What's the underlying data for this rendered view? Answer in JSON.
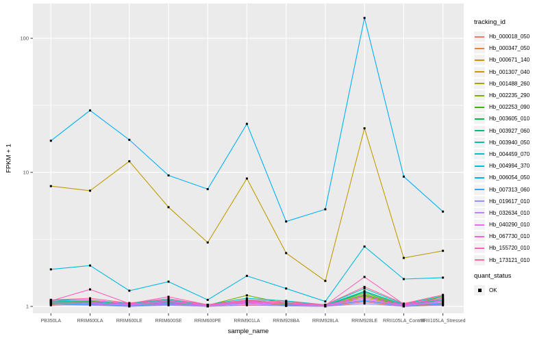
{
  "chart_data": {
    "type": "line",
    "title": "",
    "xlabel": "sample_name",
    "ylabel": "FPKM + 1",
    "yscale": "log10",
    "ylim": [
      0.9,
      180
    ],
    "y_major_ticks": [
      1,
      10,
      100
    ],
    "y_minor_ticks": [
      3.162,
      31.623
    ],
    "grid": true,
    "legend_position": "right",
    "marker": "black-square",
    "legends": {
      "tracking_title": "tracking_id",
      "quant_title": "quant_status",
      "quant_entries": [
        "OK"
      ]
    },
    "colors": {
      "panel_bg": "#EBEBEB",
      "gridline": "#FFFFFF",
      "tick_label": "#4D4D4D",
      "axis_title": "#000000",
      "legend_key_bg": "#F2F2F2",
      "point": "#000000"
    },
    "categories": [
      "PB350LA",
      "RRIM600LA",
      "RRIM600LE",
      "RRIM600SE",
      "RRIM600PE",
      "RRIM901LA",
      "RRIM928BA",
      "RRIM928LA",
      "RRIM928LE",
      "RRII105LA_Control",
      "RRII105LA_Stressed"
    ],
    "series": [
      {
        "name": "Hb_000018_050",
        "color": "#F8766D",
        "values": [
          1.02,
          1.04,
          1.0,
          1.03,
          1.0,
          1.02,
          1.01,
          1.0,
          1.08,
          1.0,
          1.03
        ]
      },
      {
        "name": "Hb_000347_050",
        "color": "#EA8331",
        "values": [
          1.04,
          1.07,
          1.01,
          1.05,
          1.01,
          1.05,
          1.02,
          1.0,
          1.12,
          1.01,
          1.06
        ]
      },
      {
        "name": "Hb_000671_140",
        "color": "#D89000",
        "values": [
          1.05,
          1.03,
          1.02,
          1.07,
          1.0,
          1.08,
          1.03,
          1.01,
          1.15,
          1.01,
          1.04
        ]
      },
      {
        "name": "Hb_001307_040",
        "color": "#C09B00",
        "values": [
          7.9,
          7.3,
          12.1,
          5.5,
          3.0,
          9.0,
          2.5,
          1.55,
          21.3,
          2.3,
          2.6
        ]
      },
      {
        "name": "Hb_001488_260",
        "color": "#A3A500",
        "values": [
          1.05,
          1.07,
          1.01,
          1.06,
          1.01,
          1.1,
          1.04,
          1.01,
          1.18,
          1.02,
          1.08
        ]
      },
      {
        "name": "Hb_002235_290",
        "color": "#7CAE00",
        "values": [
          1.08,
          1.1,
          1.03,
          1.1,
          1.02,
          1.21,
          1.05,
          1.02,
          1.25,
          1.02,
          1.12
        ]
      },
      {
        "name": "Hb_002253_090",
        "color": "#39B600",
        "values": [
          1.06,
          1.08,
          1.02,
          1.08,
          1.01,
          1.12,
          1.04,
          1.01,
          1.22,
          1.02,
          1.18
        ]
      },
      {
        "name": "Hb_003605_010",
        "color": "#00BB4E",
        "values": [
          1.09,
          1.06,
          1.02,
          1.09,
          1.01,
          1.1,
          1.05,
          1.02,
          1.2,
          1.02,
          1.15
        ]
      },
      {
        "name": "Hb_003927_060",
        "color": "#00BF7D",
        "values": [
          1.07,
          1.09,
          1.03,
          1.07,
          1.02,
          1.08,
          1.06,
          1.01,
          1.28,
          1.03,
          1.1
        ]
      },
      {
        "name": "Hb_003940_050",
        "color": "#00C1A3",
        "values": [
          1.1,
          1.08,
          1.04,
          1.11,
          1.02,
          1.12,
          1.08,
          1.02,
          1.3,
          1.03,
          1.12
        ]
      },
      {
        "name": "Hb_004459_070",
        "color": "#00BFC4",
        "values": [
          1.12,
          1.12,
          1.05,
          1.13,
          1.03,
          1.15,
          1.1,
          1.03,
          1.36,
          1.04,
          1.2
        ]
      },
      {
        "name": "Hb_004994_370",
        "color": "#00BAE0",
        "values": [
          1.89,
          2.02,
          1.31,
          1.53,
          1.12,
          1.69,
          1.36,
          1.09,
          2.8,
          1.6,
          1.64
        ]
      },
      {
        "name": "Hb_006054_050",
        "color": "#00B0F6",
        "values": [
          17.2,
          29.0,
          17.5,
          9.5,
          7.5,
          23.0,
          4.3,
          5.3,
          142.0,
          9.3,
          5.1
        ]
      },
      {
        "name": "Hb_007313_060",
        "color": "#35A2FF",
        "values": [
          1.05,
          1.04,
          1.01,
          1.04,
          1.01,
          1.06,
          1.02,
          1.01,
          1.1,
          1.01,
          1.05
        ]
      },
      {
        "name": "Hb_019617_010",
        "color": "#9590FF",
        "values": [
          1.03,
          1.02,
          1.0,
          1.02,
          1.0,
          1.03,
          1.01,
          1.0,
          1.05,
          1.0,
          1.02
        ]
      },
      {
        "name": "Hb_032634_010",
        "color": "#C77CFF",
        "values": [
          1.06,
          1.05,
          1.02,
          1.05,
          1.01,
          1.05,
          1.03,
          1.01,
          1.12,
          1.01,
          1.08
        ]
      },
      {
        "name": "Hb_040290_010",
        "color": "#E76BF3",
        "values": [
          1.08,
          1.07,
          1.03,
          1.08,
          1.02,
          1.07,
          1.05,
          1.02,
          1.15,
          1.02,
          1.1
        ]
      },
      {
        "name": "Hb_067730_010",
        "color": "#FA62DB",
        "values": [
          1.1,
          1.12,
          1.04,
          1.1,
          1.02,
          1.1,
          1.06,
          1.02,
          1.2,
          1.03,
          1.14
        ]
      },
      {
        "name": "Hb_155720_010",
        "color": "#FF62BC",
        "values": [
          1.1,
          1.34,
          1.05,
          1.18,
          1.03,
          1.08,
          1.06,
          1.02,
          1.66,
          1.04,
          1.15
        ]
      },
      {
        "name": "Hb_173121_010",
        "color": "#FF6A98",
        "values": [
          1.12,
          1.15,
          1.06,
          1.14,
          1.03,
          1.12,
          1.08,
          1.03,
          1.4,
          1.05,
          1.22
        ]
      }
    ]
  }
}
